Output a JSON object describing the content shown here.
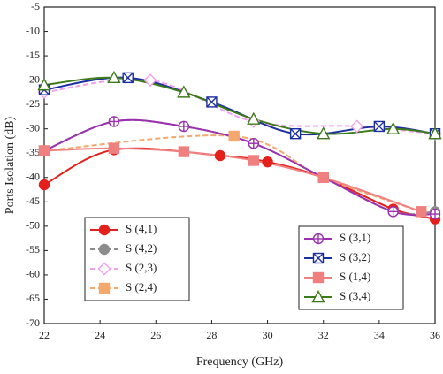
{
  "chart_data": {
    "type": "line",
    "x_label": "Frequency (GHz)",
    "y_label": "Ports Isolation (dB)",
    "xlim": [
      22,
      36
    ],
    "xticks": [
      22,
      24,
      26,
      28,
      30,
      32,
      34,
      36
    ],
    "ylim": [
      -70,
      -5
    ],
    "yticks": [
      -70,
      -65,
      -60,
      -55,
      -50,
      -45,
      -40,
      -35,
      -30,
      -25,
      -20,
      -15,
      -10,
      -5
    ],
    "series": [
      {
        "name": "S (4,1)",
        "color": "#e3201b",
        "line_style": "solid",
        "marker": "circle",
        "filled": true,
        "x": [
          22,
          24.5,
          28.3,
          30,
          32,
          34.5,
          36
        ],
        "values": [
          -41.5,
          -34.3,
          -35.5,
          -36.8,
          -40,
          -46.5,
          -48.5
        ]
      },
      {
        "name": "S (4,2)",
        "color": "#8c8c8c",
        "line_style": "dashed",
        "marker": "circle",
        "filled": true,
        "x": [
          22,
          24.5,
          27,
          29.5,
          32,
          34.5,
          36
        ],
        "values": [
          -34.5,
          -28.5,
          -29.5,
          -33,
          -40,
          -47,
          -47
        ]
      },
      {
        "name": "S (2,3)",
        "color": "#f0a0f0",
        "line_style": "dashed",
        "marker": "diamond",
        "filled": false,
        "x": [
          22,
          25.8,
          29.5,
          33.2,
          36
        ],
        "values": [
          -22.5,
          -20,
          -28.5,
          -29.5,
          -31
        ]
      },
      {
        "name": "S (2,4)",
        "color": "#f5a86e",
        "line_style": "dashed",
        "marker": "square",
        "filled": true,
        "x": [
          22,
          28.8,
          32,
          35.5
        ],
        "values": [
          -34.5,
          -31.5,
          -40,
          -47
        ]
      },
      {
        "name": "S (3,1)",
        "color": "#9b30b0",
        "line_style": "solid",
        "marker": "circle-plus",
        "filled": false,
        "x": [
          22,
          24.5,
          27,
          29.5,
          32,
          34.5,
          36
        ],
        "values": [
          -34.5,
          -28.5,
          -29.5,
          -33,
          -40,
          -47,
          -47.5
        ]
      },
      {
        "name": "S (3,2)",
        "color": "#1c2fa0",
        "line_style": "solid",
        "marker": "square-x",
        "filled": false,
        "x": [
          22,
          25,
          28,
          31,
          34,
          36
        ],
        "values": [
          -22,
          -19.5,
          -24.5,
          -31,
          -29.5,
          -31
        ]
      },
      {
        "name": "S (1,4)",
        "color": "#f08080",
        "line_style": "solid",
        "marker": "square",
        "filled": true,
        "x": [
          22,
          24.5,
          27,
          29.5,
          32,
          35.5
        ],
        "values": [
          -34.5,
          -34,
          -34.7,
          -36.5,
          -40,
          -47
        ]
      },
      {
        "name": "S (3,4)",
        "color": "#3d7a1a",
        "line_style": "solid",
        "marker": "triangle",
        "filled": false,
        "x": [
          22,
          24.5,
          27,
          29.5,
          32,
          34.5,
          36
        ],
        "values": [
          -21,
          -19.5,
          -22.5,
          -28,
          -31,
          -30,
          -31
        ]
      }
    ]
  }
}
